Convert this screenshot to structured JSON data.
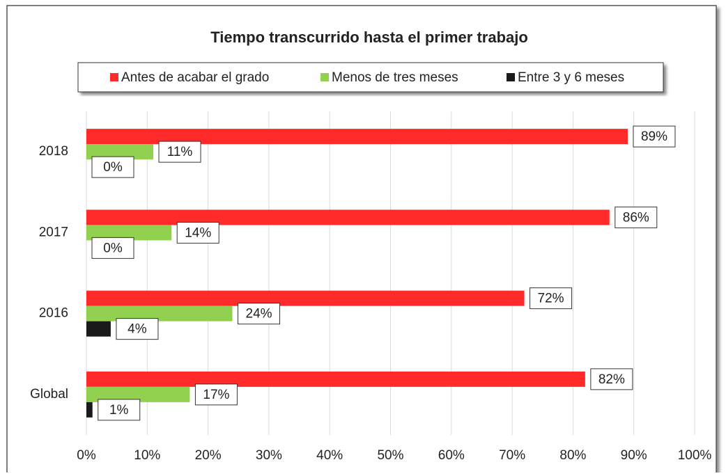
{
  "chart_data": {
    "type": "bar",
    "orientation": "horizontal",
    "title": "Tiempo transcurrido hasta el primer trabajo",
    "categories": [
      "2018",
      "2017",
      "2016",
      "Global"
    ],
    "series": [
      {
        "name": "Antes de acabar el grado",
        "color": "#ff2a2a",
        "values": [
          89,
          86,
          72,
          82
        ],
        "value_labels": [
          "89%",
          "86%",
          "72%",
          "82%"
        ]
      },
      {
        "name": "Menos de tres meses",
        "color": "#92d050",
        "values": [
          11,
          14,
          24,
          17
        ],
        "value_labels": [
          "11%",
          "14%",
          "24%",
          "17%"
        ]
      },
      {
        "name": "Entre 3 y 6 meses",
        "color": "#1a1a1a",
        "values": [
          0,
          0,
          4,
          1
        ],
        "value_labels": [
          "0%",
          "0%",
          "4%",
          "1%"
        ]
      }
    ],
    "xlim": [
      0,
      100
    ],
    "xticks": [
      {
        "value": 0,
        "label": "0%"
      },
      {
        "value": 10,
        "label": "10%"
      },
      {
        "value": 20,
        "label": "20%"
      },
      {
        "value": 30,
        "label": "30%"
      },
      {
        "value": 40,
        "label": "40%"
      },
      {
        "value": 50,
        "label": "50%"
      },
      {
        "value": 60,
        "label": "60%"
      },
      {
        "value": 70,
        "label": "70%"
      },
      {
        "value": 80,
        "label": "80%"
      },
      {
        "value": 90,
        "label": "90%"
      },
      {
        "value": 100,
        "label": "100%"
      }
    ],
    "grid": true,
    "legend": "top"
  }
}
